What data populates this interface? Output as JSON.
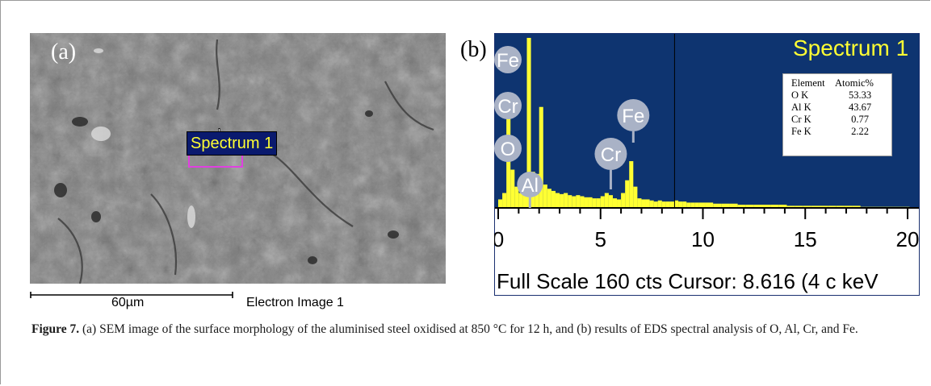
{
  "panel_a": {
    "label": "(a)",
    "spectrum_label": "Spectrum 1",
    "scale_bar_label": "60µm",
    "image_label": "Electron Image 1"
  },
  "panel_b": {
    "label": "(b)",
    "spectrum_title": "Spectrum 1",
    "peak_labels": [
      "Fe",
      "Cr",
      "O",
      "Al",
      "Fe",
      "Cr"
    ],
    "table": {
      "header_element": "Element",
      "header_value": "Atomic%",
      "rows": [
        {
          "element": "O K",
          "value": "53.33"
        },
        {
          "element": "Al K",
          "value": "43.67"
        },
        {
          "element": "Cr K",
          "value": "0.77"
        },
        {
          "element": "Fe K",
          "value": "2.22"
        }
      ]
    },
    "footer": "Full Scale 160 cts Cursor: 8.616  (4 c keV",
    "colors": {
      "background": "#0e3470",
      "spectrum": "#ffff33",
      "peak_marker": "#a9b2c6"
    }
  },
  "caption": {
    "prefix": "Figure 7.",
    "text": " (a) SEM image of the surface morphology of the aluminised steel oxidised at 850 °C for 12 h, and (b) results of EDS spectral analysis of O, Al, Cr, and Fe."
  },
  "chart_data": {
    "type": "bar",
    "title": "Spectrum 1",
    "xlabel": "keV",
    "ylabel": "",
    "xlim": [
      0,
      20
    ],
    "ylim": [
      0,
      160
    ],
    "x_ticks": [
      0,
      5,
      10,
      15,
      20
    ],
    "cursor_keV": 8.616,
    "full_scale_cts": 160,
    "x": [
      0.1,
      0.3,
      0.5,
      0.7,
      0.9,
      1.1,
      1.3,
      1.5,
      1.7,
      1.9,
      2.1,
      2.3,
      2.5,
      2.7,
      2.9,
      3.1,
      3.3,
      3.5,
      3.7,
      3.9,
      4.1,
      4.3,
      4.5,
      4.7,
      4.9,
      5.1,
      5.3,
      5.5,
      5.7,
      5.9,
      6.1,
      6.3,
      6.5,
      6.7,
      6.9,
      7.1,
      7.3,
      7.5,
      7.7,
      7.9,
      8.1,
      8.3,
      8.5,
      8.7,
      8.9,
      9.1,
      9.3,
      9.5,
      9.7,
      9.9,
      10.3,
      10.7,
      11.1,
      11.5,
      11.9,
      12.3,
      12.7,
      13.1,
      13.5,
      13.9,
      14.3,
      14.7,
      15.1,
      15.5,
      15.9,
      16.3,
      16.7,
      17.1,
      17.5,
      17.9,
      18.3,
      18.7,
      19.1,
      19.5,
      19.9
    ],
    "values": [
      8,
      14,
      100,
      36,
      20,
      14,
      30,
      160,
      34,
      32,
      95,
      22,
      18,
      16,
      14,
      13,
      14,
      12,
      11,
      12,
      11,
      10,
      10,
      9,
      9,
      11,
      14,
      12,
      9,
      8,
      14,
      26,
      44,
      20,
      9,
      8,
      8,
      7,
      6,
      7,
      6,
      6,
      6,
      7,
      6,
      6,
      5,
      5,
      5,
      5,
      5,
      4,
      4,
      4,
      3,
      3,
      3,
      3,
      3,
      3,
      2,
      2,
      2,
      2,
      2,
      2,
      2,
      2,
      2,
      1,
      1,
      1,
      1,
      1,
      1
    ],
    "peaks": [
      {
        "element": "O",
        "keV": 0.52
      },
      {
        "element": "Cr",
        "keV": 0.57
      },
      {
        "element": "Fe",
        "keV": 0.7
      },
      {
        "element": "Al",
        "keV": 1.49
      },
      {
        "element": "Cr",
        "keV": 5.41
      },
      {
        "element": "Fe",
        "keV": 6.4
      }
    ]
  }
}
